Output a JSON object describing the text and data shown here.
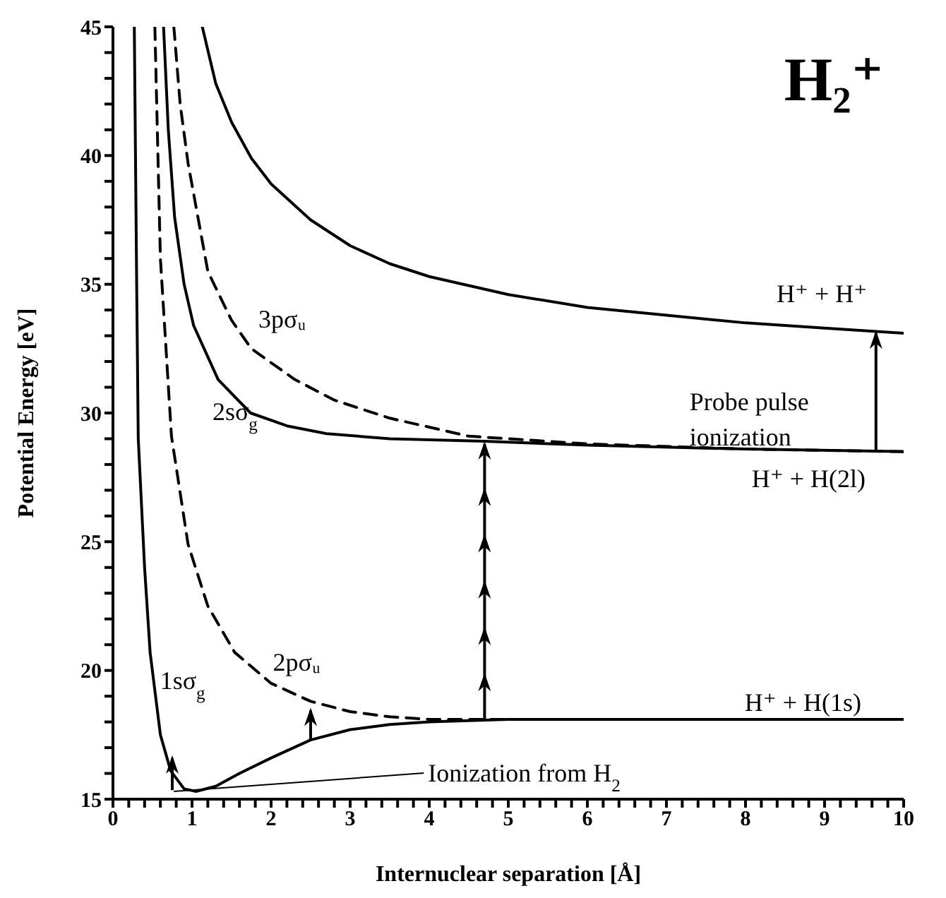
{
  "chart_data": {
    "type": "line",
    "title": "H₂⁺",
    "xlabel": "Internuclear separation [Å]",
    "ylabel": "Potential Energy [eV]",
    "xlim": [
      0,
      10
    ],
    "ylim": [
      15,
      45
    ],
    "xticks": [
      0,
      {
        "value": 0.2,
        "label": null
      },
      {
        "value": 0.4,
        "label": null
      },
      {
        "value": 0.6,
        "label": null
      },
      {
        "value": 0.8,
        "label": null
      },
      1,
      {
        "value": 1.2,
        "label": null
      },
      {
        "value": 1.4,
        "label": null
      },
      {
        "value": 1.6,
        "label": null
      },
      {
        "value": 1.8,
        "label": null
      },
      2,
      {
        "value": 2.2,
        "label": null
      },
      {
        "value": 2.4,
        "label": null
      },
      {
        "value": 2.6,
        "label": null
      },
      {
        "value": 2.8,
        "label": null
      },
      3,
      {
        "value": 3.2,
        "label": null
      },
      {
        "value": 3.4,
        "label": null
      },
      {
        "value": 3.6,
        "label": null
      },
      {
        "value": 3.8,
        "label": null
      },
      4,
      {
        "value": 4.2,
        "label": null
      },
      {
        "value": 4.4,
        "label": null
      },
      {
        "value": 4.6,
        "label": null
      },
      {
        "value": 4.8,
        "label": null
      },
      5,
      {
        "value": 5.2,
        "label": null
      },
      {
        "value": 5.4,
        "label": null
      },
      {
        "value": 5.6,
        "label": null
      },
      {
        "value": 5.8,
        "label": null
      },
      6,
      {
        "value": 6.2,
        "label": null
      },
      {
        "value": 6.4,
        "label": null
      },
      {
        "value": 6.6,
        "label": null
      },
      {
        "value": 6.8,
        "label": null
      },
      7,
      {
        "value": 7.2,
        "label": null
      },
      {
        "value": 7.4,
        "label": null
      },
      {
        "value": 7.6,
        "label": null
      },
      {
        "value": 7.8,
        "label": null
      },
      8,
      {
        "value": 8.2,
        "label": null
      },
      {
        "value": 8.4,
        "label": null
      },
      {
        "value": 8.6,
        "label": null
      },
      {
        "value": 8.8,
        "label": null
      },
      9,
      {
        "value": 9.2,
        "label": null
      },
      {
        "value": 9.4,
        "label": null
      },
      {
        "value": 9.6,
        "label": null
      },
      {
        "value": 9.8,
        "label": null
      },
      10
    ],
    "yticks": [
      15,
      {
        "value": 16,
        "label": null
      },
      {
        "value": 17,
        "label": null
      },
      {
        "value": 18,
        "label": null
      },
      {
        "value": 19,
        "label": null
      },
      20,
      {
        "value": 21,
        "label": null
      },
      {
        "value": 22,
        "label": null
      },
      {
        "value": 23,
        "label": null
      },
      {
        "value": 24,
        "label": null
      },
      25,
      {
        "value": 26,
        "label": null
      },
      {
        "value": 27,
        "label": null
      },
      {
        "value": 28,
        "label": null
      },
      {
        "value": 29,
        "label": null
      },
      30,
      {
        "value": 31,
        "label": null
      },
      {
        "value": 32,
        "label": null
      },
      {
        "value": 33,
        "label": null
      },
      {
        "value": 34,
        "label": null
      },
      35,
      {
        "value": 36,
        "label": null
      },
      {
        "value": 37,
        "label": null
      },
      {
        "value": 38,
        "label": null
      },
      {
        "value": 39,
        "label": null
      },
      40,
      {
        "value": 41,
        "label": null
      },
      {
        "value": 42,
        "label": null
      },
      {
        "value": 43,
        "label": null
      },
      {
        "value": 44,
        "label": null
      },
      45
    ],
    "marker": "none",
    "series": [
      {
        "name": "1sσ$_{g}$",
        "color": "#000000",
        "line_style": "solid",
        "x": [
          0.27,
          0.3,
          0.32,
          0.4,
          0.47,
          0.6,
          0.73,
          0.9,
          1.05,
          1.3,
          1.6,
          2,
          2.5,
          3,
          3.5,
          4,
          5,
          10
        ],
        "values": [
          45,
          35,
          29,
          24,
          20.7,
          17.5,
          16.1,
          15.4,
          15.3,
          15.5,
          16,
          16.6,
          17.3,
          17.7,
          17.9,
          18,
          18.1,
          18.1
        ]
      },
      {
        "name": "2pσᵤ",
        "color": "#000000",
        "line_style": "dashed",
        "x": [
          0.53,
          0.6,
          0.74,
          0.95,
          1.2,
          1.54,
          2,
          2.5,
          3,
          3.5,
          4,
          5,
          10
        ],
        "values": [
          45,
          36,
          29.1,
          24.9,
          22.5,
          20.7,
          19.5,
          18.8,
          18.4,
          18.2,
          18.1,
          18.1,
          18.1
        ]
      },
      {
        "name": "2sσ$_{g}$",
        "color": "#000000",
        "line_style": "solid",
        "x": [
          0.64,
          0.7,
          0.78,
          0.9,
          1.02,
          1.33,
          1.74,
          2.2,
          2.7,
          3.5,
          4.7,
          6,
          8,
          10
        ],
        "values": [
          45,
          41,
          37.6,
          35,
          33.4,
          31.3,
          30,
          29.5,
          29.2,
          29,
          28.9,
          28.75,
          28.6,
          28.5
        ]
      },
      {
        "name": "3pσᵤ",
        "color": "#000000",
        "line_style": "dashed",
        "x": [
          0.77,
          0.85,
          0.95,
          1.2,
          1.5,
          1.75,
          2.3,
          2.8,
          3.5,
          4.5,
          6,
          8,
          10
        ],
        "values": [
          45,
          42,
          39.7,
          35.5,
          33.6,
          32.5,
          31.3,
          30.5,
          29.8,
          29.1,
          28.8,
          28.6,
          28.5
        ]
      },
      {
        "name": "H⁺ + H⁺",
        "color": "#000000",
        "line_style": "solid",
        "x": [
          1.13,
          1.3,
          1.5,
          1.75,
          2,
          2.5,
          3,
          3.5,
          4,
          5,
          6,
          7,
          8,
          9,
          10
        ],
        "values": [
          45,
          42.8,
          41.3,
          39.9,
          38.9,
          37.5,
          36.5,
          35.8,
          35.3,
          34.6,
          34.1,
          33.8,
          33.5,
          33.3,
          33.1
        ]
      }
    ],
    "annotations": [
      {
        "text": "H⁺ + H(2l)",
        "x": 10,
        "y": 28.5
      },
      {
        "text": "H⁺ + H(1s)",
        "x": 10,
        "y": 18.1
      },
      "Probe pulse ionization",
      "Ionization from H$_{2}$"
    ]
  }
}
